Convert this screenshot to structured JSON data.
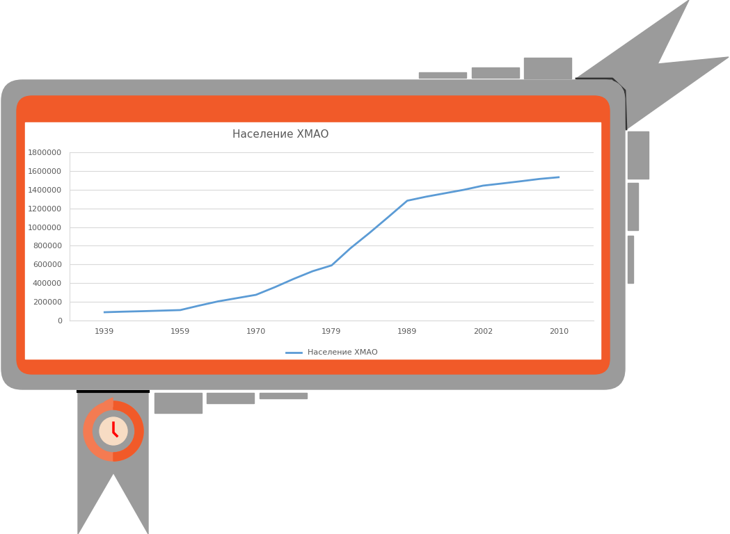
{
  "chart_data": {
    "type": "line",
    "title": "Население ХМАО",
    "categories": [
      "1939",
      null,
      null,
      null,
      "1959",
      null,
      null,
      null,
      "1970",
      null,
      null,
      null,
      "1979",
      null,
      null,
      null,
      "1989",
      null,
      null,
      null,
      "2002",
      null,
      null,
      null,
      "2010"
    ],
    "series": [
      {
        "name": "Население ХМАО",
        "color": "#5b9bd5",
        "line_style": "solid",
        "values": [
          89000,
          95000,
          100000,
          106000,
          112000,
          160000,
          205000,
          240000,
          275000,
          357000,
          446000,
          528000,
          590000,
          774000,
          937000,
          1108000,
          1282000,
          1325000,
          1362000,
          1399000,
          1443000,
          1466000,
          1490000,
          1515000,
          1533000
        ]
      }
    ],
    "ylim": [
      0,
      1800000
    ],
    "yticks": [
      0,
      200000,
      400000,
      600000,
      800000,
      1000000,
      1200000,
      1400000,
      1600000,
      1800000
    ],
    "grid": true,
    "legend": "bottom"
  }
}
